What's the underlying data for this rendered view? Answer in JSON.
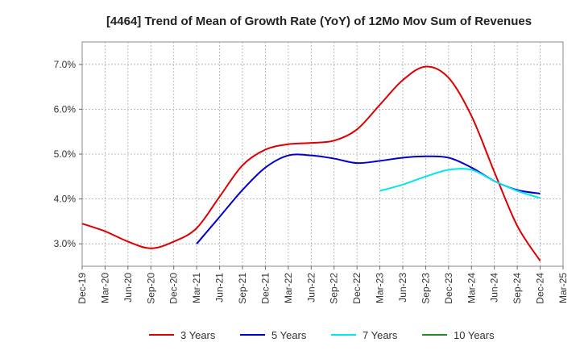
{
  "chart_data": {
    "type": "line",
    "title": "[4464]  Trend of Mean of Growth Rate (YoY) of 12Mo Mov Sum of Revenues",
    "xlabel": "",
    "ylabel": "",
    "x": [
      "Dec-19",
      "Mar-20",
      "Jun-20",
      "Sep-20",
      "Dec-20",
      "Mar-21",
      "Jun-21",
      "Sep-21",
      "Dec-21",
      "Mar-22",
      "Jun-22",
      "Sep-22",
      "Dec-22",
      "Mar-23",
      "Jun-23",
      "Sep-23",
      "Dec-23",
      "Mar-24",
      "Jun-24",
      "Sep-24",
      "Dec-24",
      "Mar-25"
    ],
    "x_tick_labels": [
      "Dec-19",
      "Mar-20",
      "Jun-20",
      "Sep-20",
      "Dec-20",
      "Mar-21",
      "Jun-21",
      "Sep-21",
      "Dec-21",
      "Mar-22",
      "Jun-22",
      "Sep-22",
      "Dec-22",
      "Mar-23",
      "Jun-23",
      "Sep-23",
      "Dec-23",
      "Mar-24",
      "Jun-24",
      "Sep-24",
      "Dec-24",
      "Mar-25"
    ],
    "y_ticks": [
      3.0,
      4.0,
      5.0,
      6.0,
      7.0
    ],
    "y_tick_labels": [
      "3.0%",
      "4.0%",
      "5.0%",
      "6.0%",
      "7.0%"
    ],
    "ylim": [
      2.5,
      7.5
    ],
    "grid": "dashed",
    "legend_position": "bottom",
    "series": [
      {
        "name": "3 Years",
        "color": "#dd0000",
        "values": [
          3.45,
          3.28,
          3.05,
          2.9,
          3.05,
          3.35,
          4.05,
          4.75,
          5.1,
          5.22,
          5.25,
          5.3,
          5.55,
          6.1,
          6.65,
          6.95,
          6.7,
          5.85,
          4.6,
          3.4,
          2.62,
          null
        ]
      },
      {
        "name": "5 Years",
        "color": "#0000cc",
        "values": [
          null,
          null,
          null,
          null,
          null,
          3.0,
          3.6,
          4.2,
          4.7,
          4.97,
          4.97,
          4.9,
          4.8,
          4.85,
          4.92,
          4.95,
          4.92,
          4.7,
          4.4,
          4.2,
          4.12,
          null
        ]
      },
      {
        "name": "7 Years",
        "color": "#00e5ee",
        "values": [
          null,
          null,
          null,
          null,
          null,
          null,
          null,
          null,
          null,
          null,
          null,
          null,
          null,
          4.18,
          4.32,
          4.5,
          4.65,
          4.65,
          4.4,
          4.18,
          4.02,
          null
        ]
      },
      {
        "name": "10 Years",
        "color": "#228b22",
        "values": [
          null,
          null,
          null,
          null,
          null,
          null,
          null,
          null,
          null,
          null,
          null,
          null,
          null,
          null,
          null,
          null,
          null,
          null,
          null,
          null,
          null,
          null
        ]
      }
    ]
  }
}
